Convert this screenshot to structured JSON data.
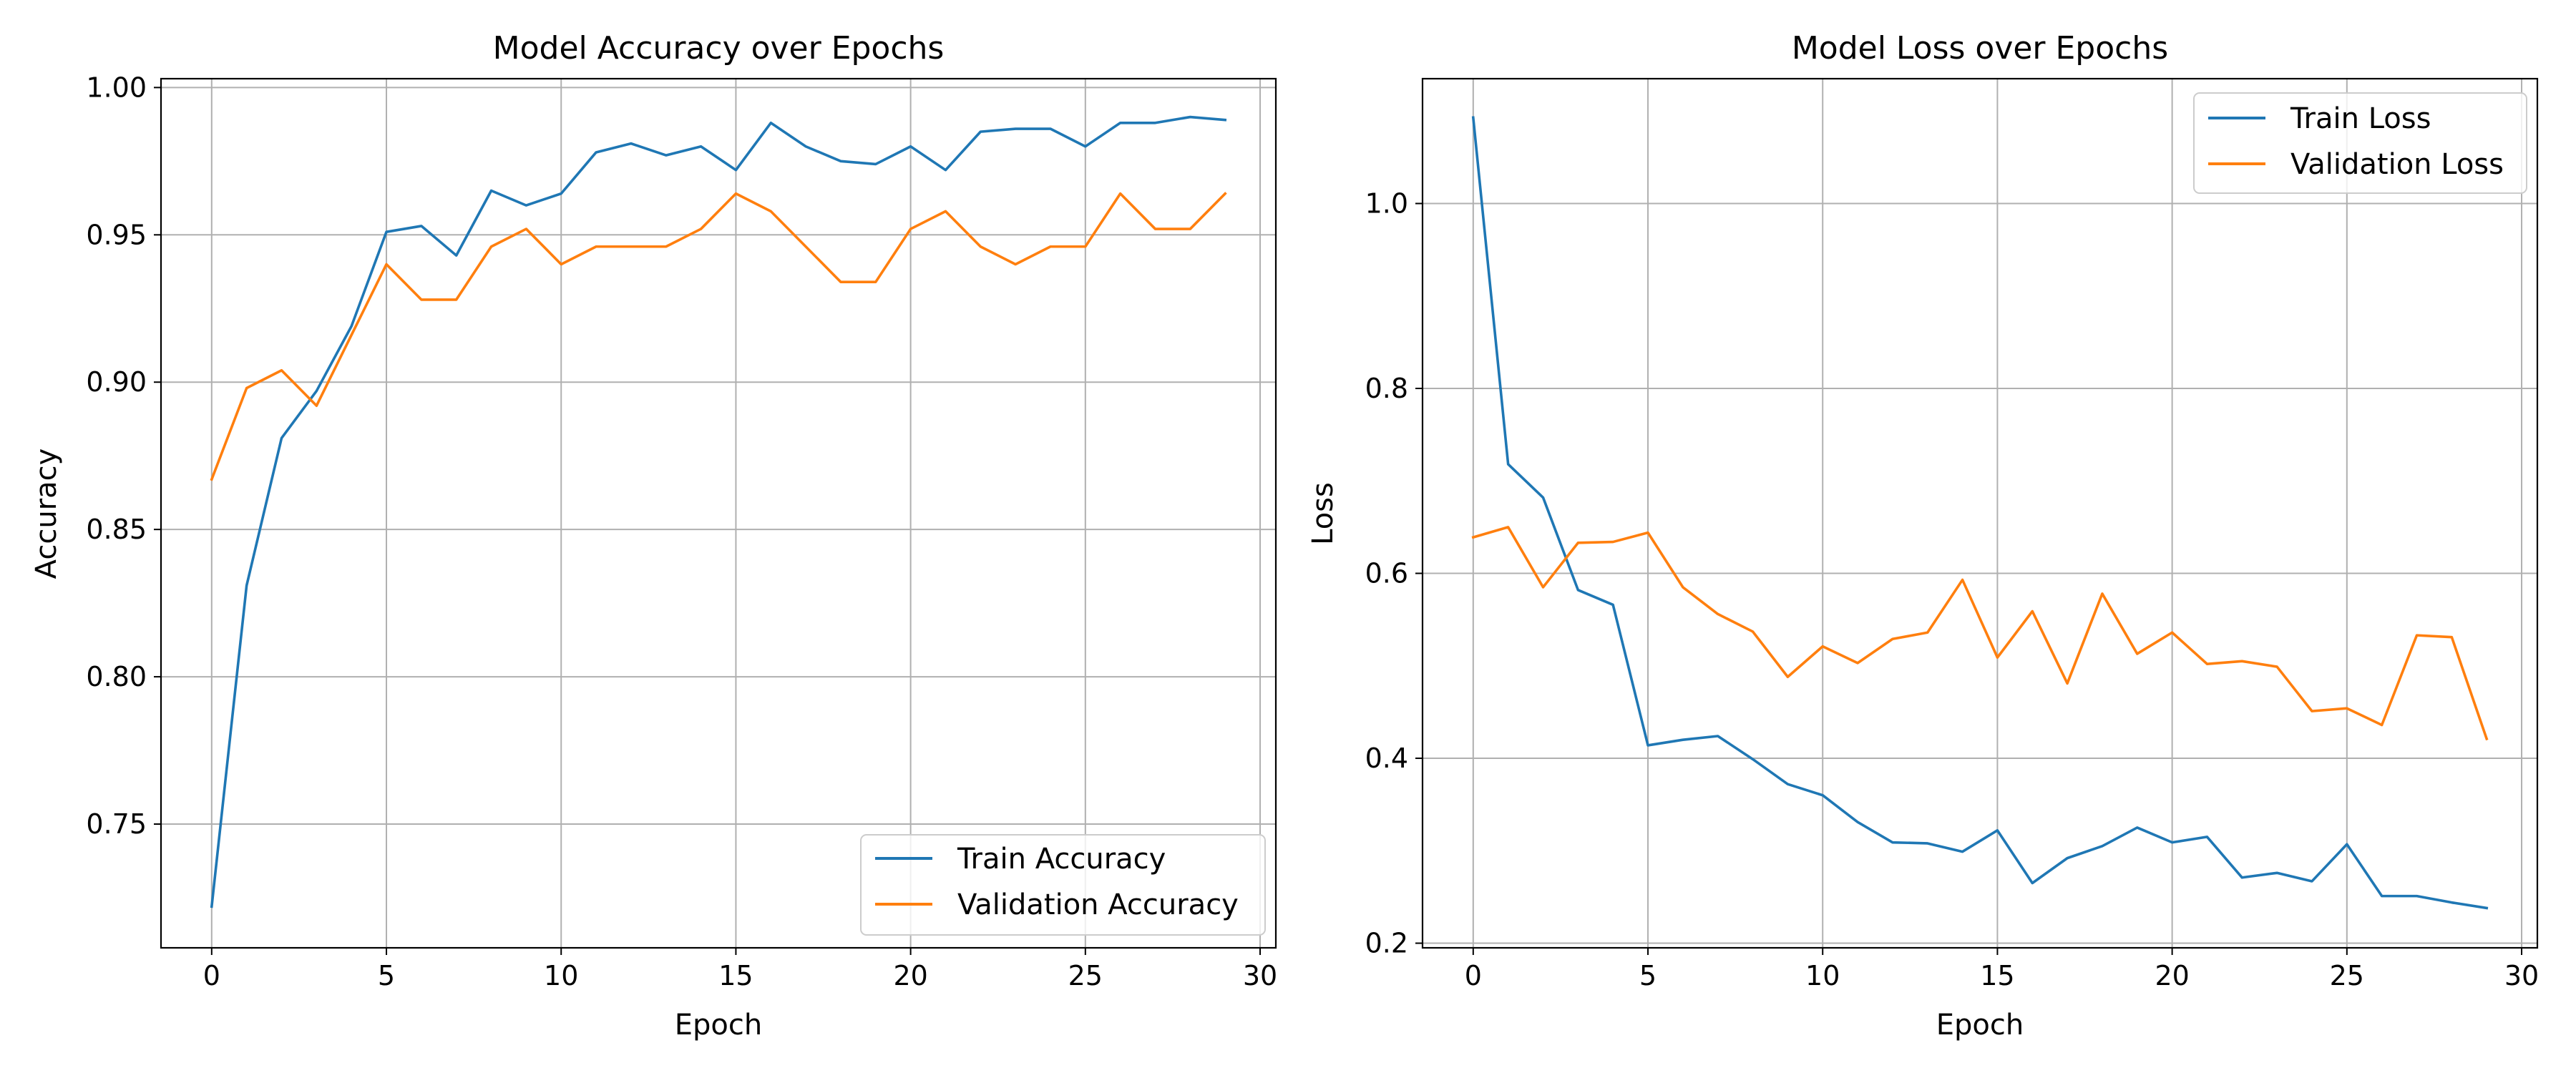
{
  "colors": {
    "train": "#1f77b4",
    "validation": "#ff7f0e"
  },
  "chart_data": [
    {
      "type": "line",
      "title": "Model Accuracy over Epochs",
      "xlabel": "Epoch",
      "ylabel": "Accuracy",
      "xlim": [
        -1.45,
        30.45
      ],
      "ylim": [
        0.708,
        1.003
      ],
      "xticks": [
        0,
        5,
        10,
        15,
        20,
        25,
        30
      ],
      "yticks": [
        0.75,
        0.8,
        0.85,
        0.9,
        0.95,
        1.0
      ],
      "ytick_labels": [
        "0.75",
        "0.80",
        "0.85",
        "0.90",
        "0.95",
        "1.00"
      ],
      "grid": true,
      "legend_position": "lower-right",
      "x": [
        0,
        1,
        2,
        3,
        4,
        5,
        6,
        7,
        8,
        9,
        10,
        11,
        12,
        13,
        14,
        15,
        16,
        17,
        18,
        19,
        20,
        21,
        22,
        23,
        24,
        25,
        26,
        27,
        28,
        29
      ],
      "series": [
        {
          "name": "Train Accuracy",
          "color_key": "train",
          "values": [
            0.722,
            0.831,
            0.881,
            0.897,
            0.919,
            0.951,
            0.953,
            0.943,
            0.965,
            0.96,
            0.964,
            0.978,
            0.981,
            0.977,
            0.98,
            0.972,
            0.988,
            0.98,
            0.975,
            0.974,
            0.98,
            0.972,
            0.985,
            0.986,
            0.986,
            0.98,
            0.988,
            0.988,
            0.99,
            0.989
          ]
        },
        {
          "name": "Validation Accuracy",
          "color_key": "validation",
          "values": [
            0.867,
            0.898,
            0.904,
            0.892,
            0.916,
            0.94,
            0.928,
            0.928,
            0.946,
            0.952,
            0.94,
            0.946,
            0.946,
            0.946,
            0.952,
            0.964,
            0.958,
            0.946,
            0.934,
            0.934,
            0.952,
            0.958,
            0.946,
            0.94,
            0.946,
            0.946,
            0.964,
            0.952,
            0.952,
            0.964
          ]
        }
      ]
    },
    {
      "type": "line",
      "title": "Model Loss over Epochs",
      "xlabel": "Epoch",
      "ylabel": "Loss",
      "xlim": [
        -1.45,
        30.45
      ],
      "ylim": [
        0.195,
        1.135
      ],
      "xticks": [
        0,
        5,
        10,
        15,
        20,
        25,
        30
      ],
      "yticks": [
        0.2,
        0.4,
        0.6,
        0.8,
        1.0
      ],
      "ytick_labels": [
        "0.2",
        "0.4",
        "0.6",
        "0.8",
        "1.0"
      ],
      "grid": true,
      "legend_position": "upper-right",
      "x": [
        0,
        1,
        2,
        3,
        4,
        5,
        6,
        7,
        8,
        9,
        10,
        11,
        12,
        13,
        14,
        15,
        16,
        17,
        18,
        19,
        20,
        21,
        22,
        23,
        24,
        25,
        26,
        27,
        28,
        29
      ],
      "series": [
        {
          "name": "Train Loss",
          "color_key": "train",
          "values": [
            1.093,
            0.718,
            0.682,
            0.582,
            0.566,
            0.414,
            0.42,
            0.424,
            0.399,
            0.372,
            0.36,
            0.331,
            0.309,
            0.308,
            0.299,
            0.322,
            0.265,
            0.292,
            0.305,
            0.325,
            0.309,
            0.315,
            0.271,
            0.276,
            0.267,
            0.307,
            0.251,
            0.251,
            0.244,
            0.238
          ]
        },
        {
          "name": "Validation Loss",
          "color_key": "validation",
          "values": [
            0.639,
            0.65,
            0.585,
            0.633,
            0.634,
            0.644,
            0.585,
            0.556,
            0.537,
            0.488,
            0.521,
            0.503,
            0.529,
            0.536,
            0.593,
            0.509,
            0.559,
            0.481,
            0.578,
            0.513,
            0.536,
            0.502,
            0.505,
            0.499,
            0.451,
            0.454,
            0.436,
            0.533,
            0.531,
            0.421
          ]
        }
      ]
    }
  ]
}
